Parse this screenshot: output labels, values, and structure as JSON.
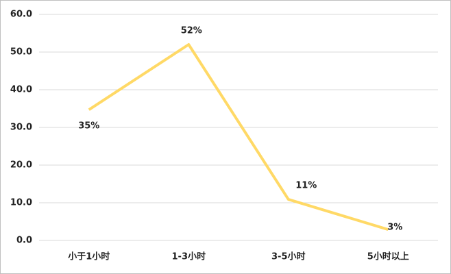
{
  "chart_data": {
    "type": "line",
    "categories": [
      "小于1小时",
      "1-3小时",
      "3-5小时",
      "5小时以上"
    ],
    "series": [
      {
        "color": "#FFD966",
        "values": [
          34.7,
          52,
          10.9,
          2.9
        ],
        "value_labels": [
          "35%",
          "52%",
          "11%",
          "3%"
        ]
      }
    ],
    "ylim": [
      0,
      60
    ],
    "yticks": [
      {
        "value": 0,
        "label": "0.0"
      },
      {
        "value": 10,
        "label": "10.0"
      },
      {
        "value": 20,
        "label": "20.0"
      },
      {
        "value": 30,
        "label": "30.0"
      },
      {
        "value": 40,
        "label": "40.0"
      },
      {
        "value": 50,
        "label": "50.0"
      },
      {
        "value": 60,
        "label": "60.0"
      }
    ],
    "grid": true
  }
}
